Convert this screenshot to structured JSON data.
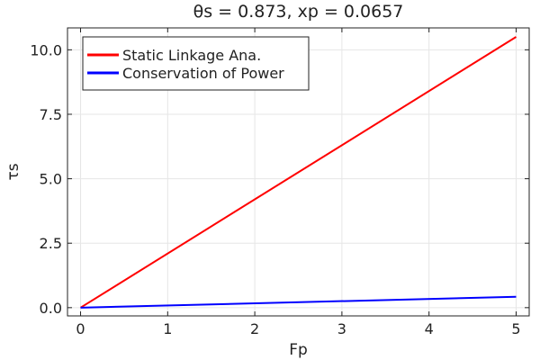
{
  "chart_data": {
    "type": "line",
    "title": "θs = 0.873, xp = 0.0657",
    "xlabel": "Fp",
    "ylabel": "τs",
    "xlim": [
      -0.15,
      5.15
    ],
    "ylim": [
      -0.32,
      10.85
    ],
    "xticks": [
      0,
      1,
      2,
      3,
      4,
      5
    ],
    "xtick_labels": [
      "0",
      "1",
      "2",
      "3",
      "4",
      "5"
    ],
    "yticks": [
      0,
      2.5,
      5,
      7.5,
      10
    ],
    "ytick_labels": [
      "0.0",
      "2.5",
      "5.0",
      "7.5",
      "10.0"
    ],
    "grid": true,
    "legend_position": "top-left",
    "series": [
      {
        "name": "Static Linkage Ana.",
        "color": "#ff0000",
        "x": [
          0,
          5
        ],
        "y": [
          0,
          10.5
        ]
      },
      {
        "name": "Conservation of Power",
        "color": "#0000ff",
        "x": [
          0,
          5
        ],
        "y": [
          0,
          0.42
        ]
      }
    ]
  }
}
